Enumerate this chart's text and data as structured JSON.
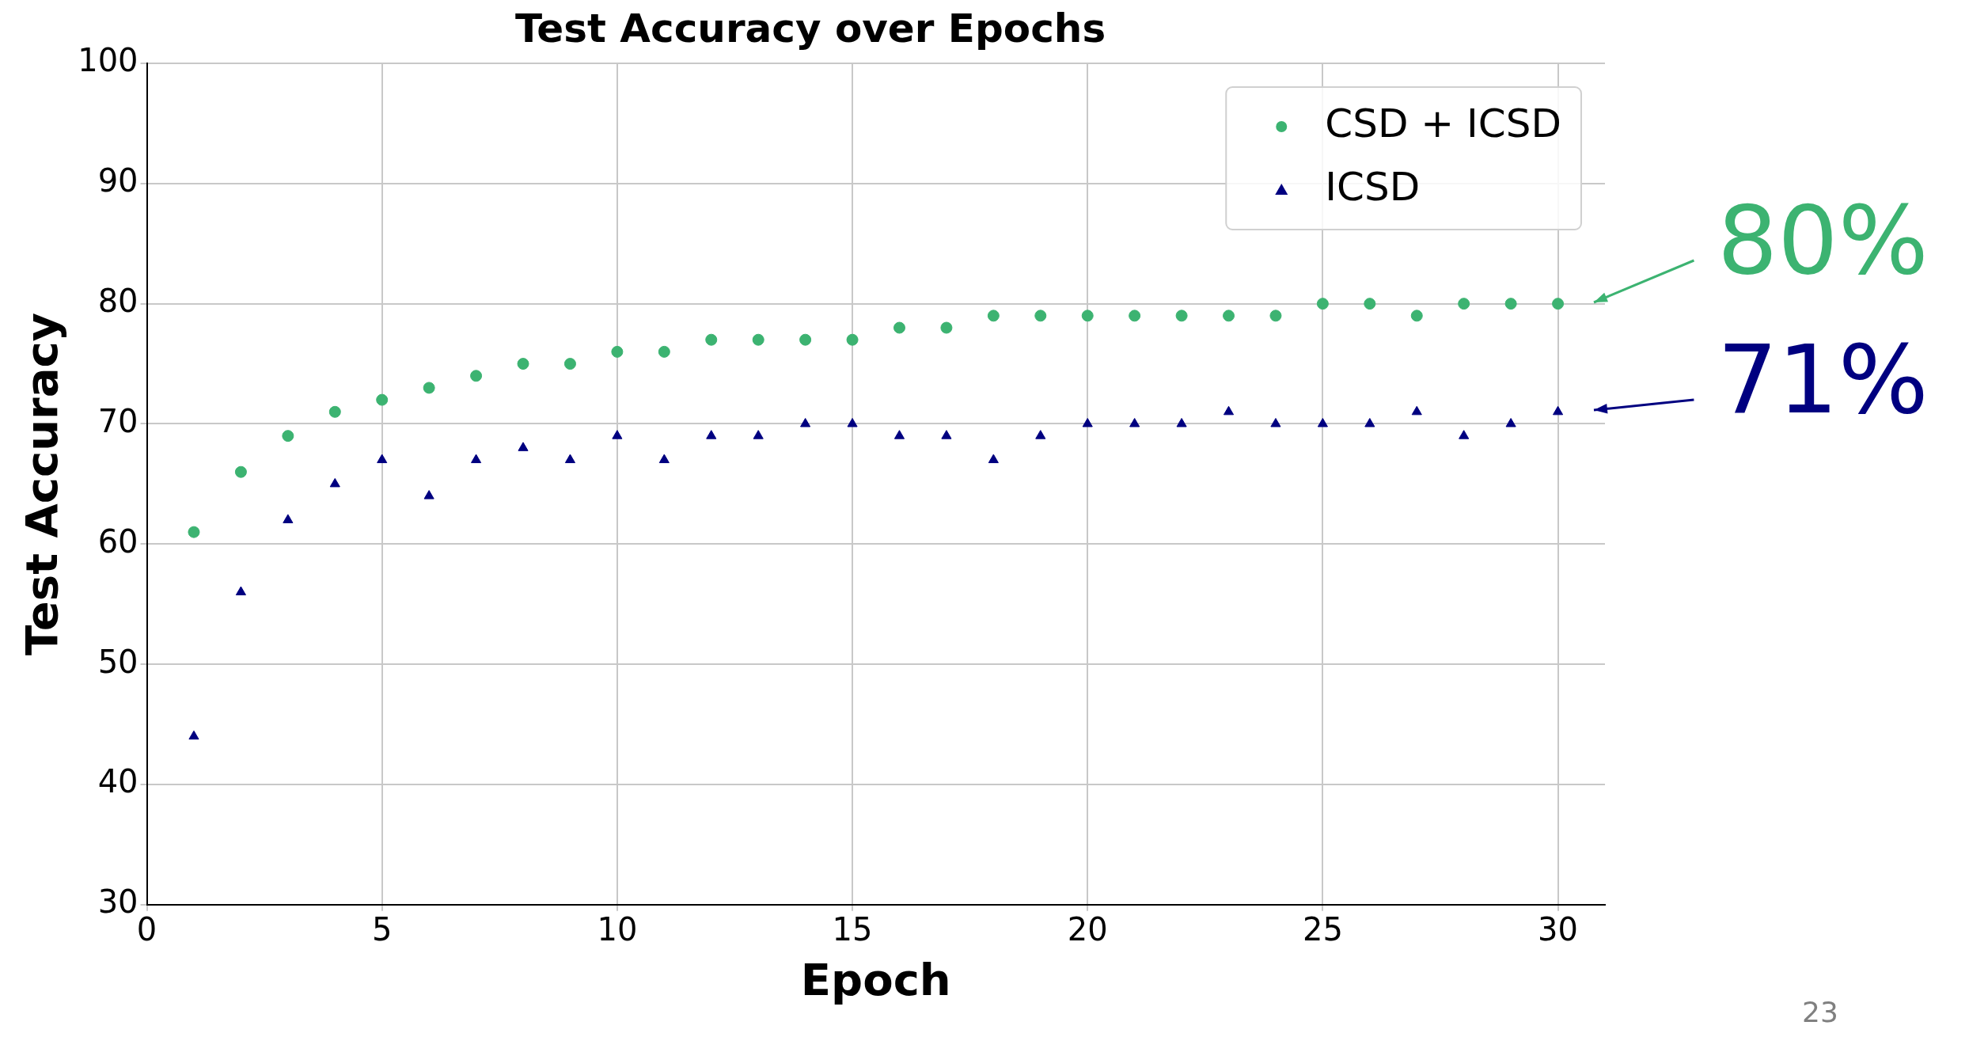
{
  "chart_data": {
    "type": "scatter",
    "title": "Test Accuracy over Epochs",
    "xlabel": "Epoch",
    "ylabel": "Test Accuracy",
    "x": [
      1,
      2,
      3,
      4,
      5,
      6,
      7,
      8,
      9,
      10,
      11,
      12,
      13,
      14,
      15,
      16,
      17,
      18,
      19,
      20,
      21,
      22,
      23,
      24,
      25,
      26,
      27,
      28,
      29,
      30
    ],
    "series": [
      {
        "name": "CSD + ICSD",
        "color": "#3cb371",
        "marker": "circle",
        "values": [
          61,
          66,
          69,
          71,
          72,
          73,
          74,
          75,
          75,
          76,
          76,
          77,
          77,
          77,
          77,
          78,
          78,
          79,
          79,
          79,
          79,
          79,
          79,
          79,
          80,
          80,
          79,
          80,
          80,
          80
        ]
      },
      {
        "name": "ICSD",
        "color": "#000080",
        "marker": "triangle",
        "values": [
          44,
          56,
          62,
          65,
          67,
          64,
          67,
          68,
          67,
          69,
          67,
          69,
          69,
          70,
          70,
          69,
          69,
          67,
          69,
          70,
          70,
          70,
          71,
          70,
          70,
          70,
          71,
          69,
          70,
          71
        ]
      }
    ],
    "xlim": [
      0,
      31
    ],
    "xticks": [
      0,
      5,
      10,
      15,
      20,
      25,
      30
    ],
    "ylim": [
      30,
      100
    ],
    "yticks": [
      30,
      40,
      50,
      60,
      70,
      80,
      90,
      100
    ],
    "grid": true,
    "legend": "top right",
    "annotations": [
      {
        "text": "80%",
        "x": 30,
        "y": 80
      },
      {
        "text": "71%",
        "x": 30,
        "y": 71
      },
      "23"
    ]
  }
}
